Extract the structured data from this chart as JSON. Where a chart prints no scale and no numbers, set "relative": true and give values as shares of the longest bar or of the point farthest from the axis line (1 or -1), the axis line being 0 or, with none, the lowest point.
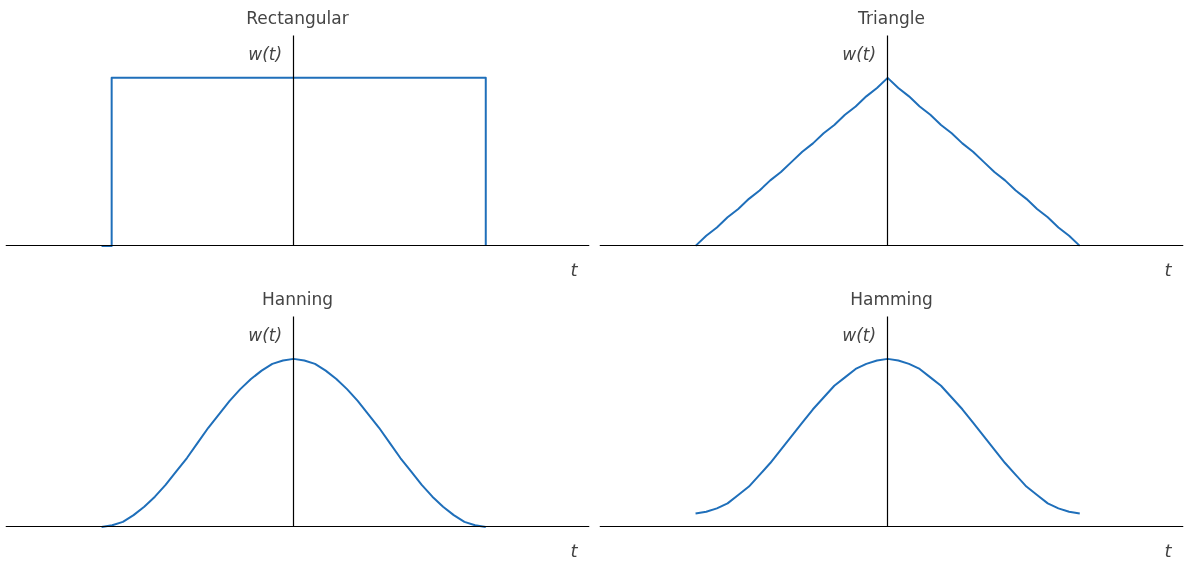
{
  "chart_data": [
    {
      "type": "step",
      "title": "Rectangular",
      "xlabel": "t",
      "ylabel": "w(t)",
      "relative": true,
      "color": "#1f6fba",
      "categories": [
        null,
        null,
        null,
        null,
        null,
        null,
        null,
        null,
        null,
        null,
        null,
        null,
        null,
        null,
        null,
        null,
        null,
        null,
        null,
        null,
        null,
        null,
        null,
        null,
        null,
        null,
        null,
        null,
        null,
        null,
        null,
        null,
        null,
        null,
        null,
        null,
        null,
        null,
        null
      ],
      "values": [
        0,
        1,
        1,
        1,
        1,
        1,
        1,
        1,
        1,
        1,
        1,
        1,
        1,
        1,
        1,
        1,
        1,
        1,
        1,
        1,
        1,
        1,
        1,
        1,
        1,
        1,
        1,
        1,
        1,
        1,
        1,
        1,
        1,
        1,
        1,
        1,
        1,
        1,
        0
      ]
    },
    {
      "type": "line",
      "title": "Triangle",
      "xlabel": "t",
      "ylabel": "w(t)",
      "relative": true,
      "color": "#1f6fba",
      "categories": [
        null,
        null,
        null,
        null,
        null,
        null,
        null,
        null,
        null,
        null,
        null,
        null,
        null,
        null,
        null,
        null,
        null,
        null,
        null,
        null,
        null,
        null,
        null,
        null,
        null,
        null,
        null,
        null,
        null,
        null,
        null,
        null,
        null,
        null,
        null,
        null,
        null
      ],
      "values": [
        0,
        0.06,
        0.11,
        0.17,
        0.22,
        0.28,
        0.33,
        0.39,
        0.44,
        0.5,
        0.56,
        0.61,
        0.67,
        0.72,
        0.78,
        0.83,
        0.89,
        0.94,
        1,
        0.94,
        0.89,
        0.83,
        0.78,
        0.72,
        0.67,
        0.61,
        0.56,
        0.5,
        0.44,
        0.39,
        0.33,
        0.28,
        0.22,
        0.17,
        0.11,
        0.06,
        0
      ]
    },
    {
      "type": "line",
      "title": "Hanning",
      "xlabel": "t",
      "ylabel": "w(t)",
      "relative": true,
      "color": "#1f6fba",
      "categories": [
        null,
        null,
        null,
        null,
        null,
        null,
        null,
        null,
        null,
        null,
        null,
        null,
        null,
        null,
        null,
        null,
        null,
        null,
        null,
        null,
        null,
        null,
        null,
        null,
        null,
        null,
        null,
        null,
        null,
        null,
        null,
        null,
        null,
        null,
        null,
        null,
        null
      ],
      "values": [
        0,
        0.01,
        0.03,
        0.07,
        0.12,
        0.18,
        0.25,
        0.33,
        0.41,
        0.5,
        0.59,
        0.67,
        0.75,
        0.82,
        0.88,
        0.93,
        0.97,
        0.99,
        1,
        0.99,
        0.97,
        0.93,
        0.88,
        0.82,
        0.75,
        0.67,
        0.59,
        0.5,
        0.41,
        0.33,
        0.25,
        0.18,
        0.12,
        0.07,
        0.03,
        0.01,
        0
      ]
    },
    {
      "type": "line",
      "title": "Hamming",
      "xlabel": "t",
      "ylabel": "w(t)",
      "relative": true,
      "color": "#1f6fba",
      "categories": [
        null,
        null,
        null,
        null,
        null,
        null,
        null,
        null,
        null,
        null,
        null,
        null,
        null,
        null,
        null,
        null,
        null,
        null,
        null,
        null,
        null,
        null,
        null,
        null,
        null,
        null,
        null,
        null,
        null,
        null,
        null,
        null,
        null,
        null,
        null,
        null,
        null
      ],
      "values": [
        0.08,
        0.09,
        0.11,
        0.14,
        0.19,
        0.24,
        0.31,
        0.38,
        0.46,
        0.54,
        0.62,
        0.7,
        0.77,
        0.84,
        0.89,
        0.94,
        0.97,
        0.99,
        1,
        0.99,
        0.97,
        0.94,
        0.89,
        0.84,
        0.77,
        0.7,
        0.62,
        0.54,
        0.46,
        0.38,
        0.31,
        0.24,
        0.19,
        0.14,
        0.11,
        0.09,
        0.08
      ]
    }
  ]
}
